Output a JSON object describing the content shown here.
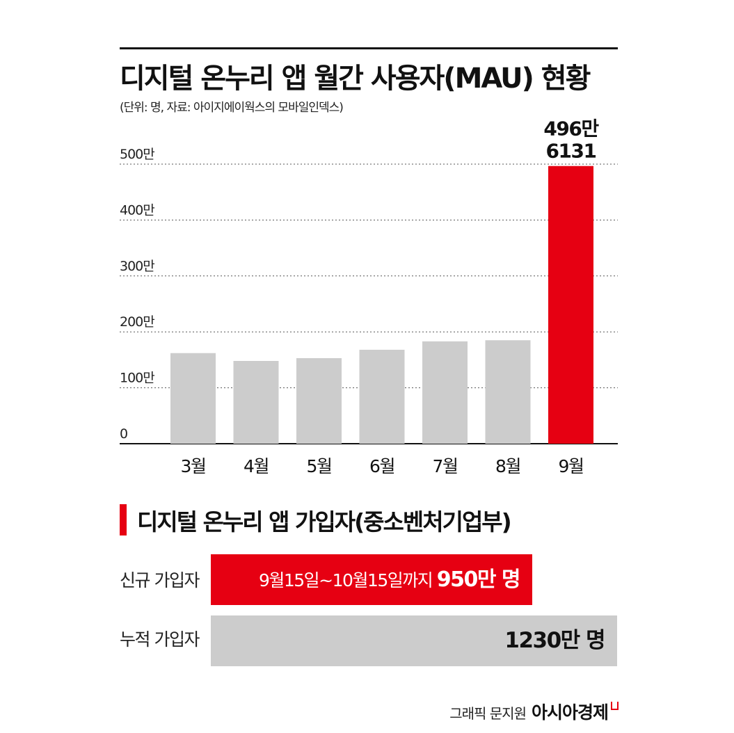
{
  "colors": {
    "highlight": "#e60012",
    "bar": "#cccccc",
    "text": "#111111"
  },
  "chart_data": {
    "type": "bar",
    "title": "디지털 온누리 앱 월간 사용자(MAU) 현황",
    "subtitle": "(단위: 명, 자료: 아이지에이웍스의 모바일인덱스)",
    "categories": [
      "3월",
      "4월",
      "5월",
      "6월",
      "7월",
      "8월",
      "9월"
    ],
    "values": [
      1620000,
      1480000,
      1530000,
      1680000,
      1830000,
      1850000,
      4966131
    ],
    "ylim": [
      0,
      5000000
    ],
    "yticks": [
      0,
      1000000,
      2000000,
      3000000,
      4000000,
      5000000
    ],
    "ytick_labels": [
      "0",
      "100만",
      "200만",
      "300만",
      "400만",
      "500만"
    ],
    "grid": true,
    "highlight_index": 6,
    "annotation": {
      "line1": "496만",
      "line2": "6131"
    }
  },
  "section2": {
    "title": "디지털 온누리 앱 가입자(중소벤처기업부)",
    "rows": [
      {
        "label": "신규 가입자",
        "text": "9월15일~10월15일까지",
        "value": "950만 명"
      },
      {
        "label": "누적 가입자",
        "value": "1230만 명"
      }
    ]
  },
  "credit": {
    "label": "그래픽 문지원",
    "brand": "아시아경제"
  }
}
